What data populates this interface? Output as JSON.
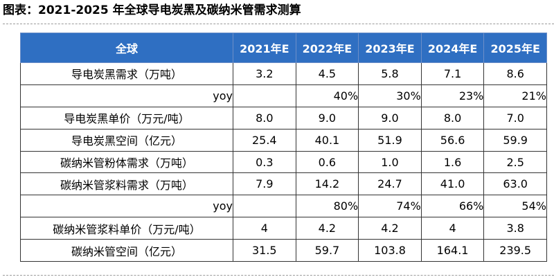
{
  "title": "图表：2021-2025 年全球导电炭黑及碳纳米管需求测算",
  "header": {
    "label": "全球",
    "years": [
      "2021年E",
      "2022年E",
      "2023年E",
      "2024年E",
      "2025年E"
    ]
  },
  "rows": [
    {
      "label": "导电炭黑需求（万吨）",
      "values": [
        "3.2",
        "4.5",
        "5.8",
        "7.1",
        "8.6"
      ]
    },
    {
      "label": "yoy",
      "values": [
        "",
        "40%",
        "30%",
        "23%",
        "21%"
      ]
    },
    {
      "label": "导电炭黑单价（万元/吨）",
      "values": [
        "8.0",
        "9.0",
        "9.0",
        "8.0",
        "7.0"
      ]
    },
    {
      "label": "导电炭黑空间（亿元）",
      "values": [
        "25.4",
        "40.1",
        "51.9",
        "56.6",
        "59.9"
      ]
    },
    {
      "label": "碳纳米管粉体需求（万吨）",
      "values": [
        "0.3",
        "0.6",
        "1.0",
        "1.6",
        "2.5"
      ]
    },
    {
      "label": "碳纳米管浆料需求（万吨）",
      "values": [
        "7.9",
        "14.2",
        "24.7",
        "41.0",
        "63.0"
      ]
    },
    {
      "label": "yoy",
      "values": [
        "",
        "80%",
        "74%",
        "66%",
        "54%"
      ]
    },
    {
      "label": "碳纳米管浆料单价（万元/吨）",
      "values": [
        "4",
        "4.2",
        "4.2",
        "4",
        "3.8"
      ]
    },
    {
      "label": "碳纳米管空间（亿元）",
      "values": [
        "31.5",
        "59.7",
        "103.8",
        "164.1",
        "239.5"
      ]
    }
  ]
}
